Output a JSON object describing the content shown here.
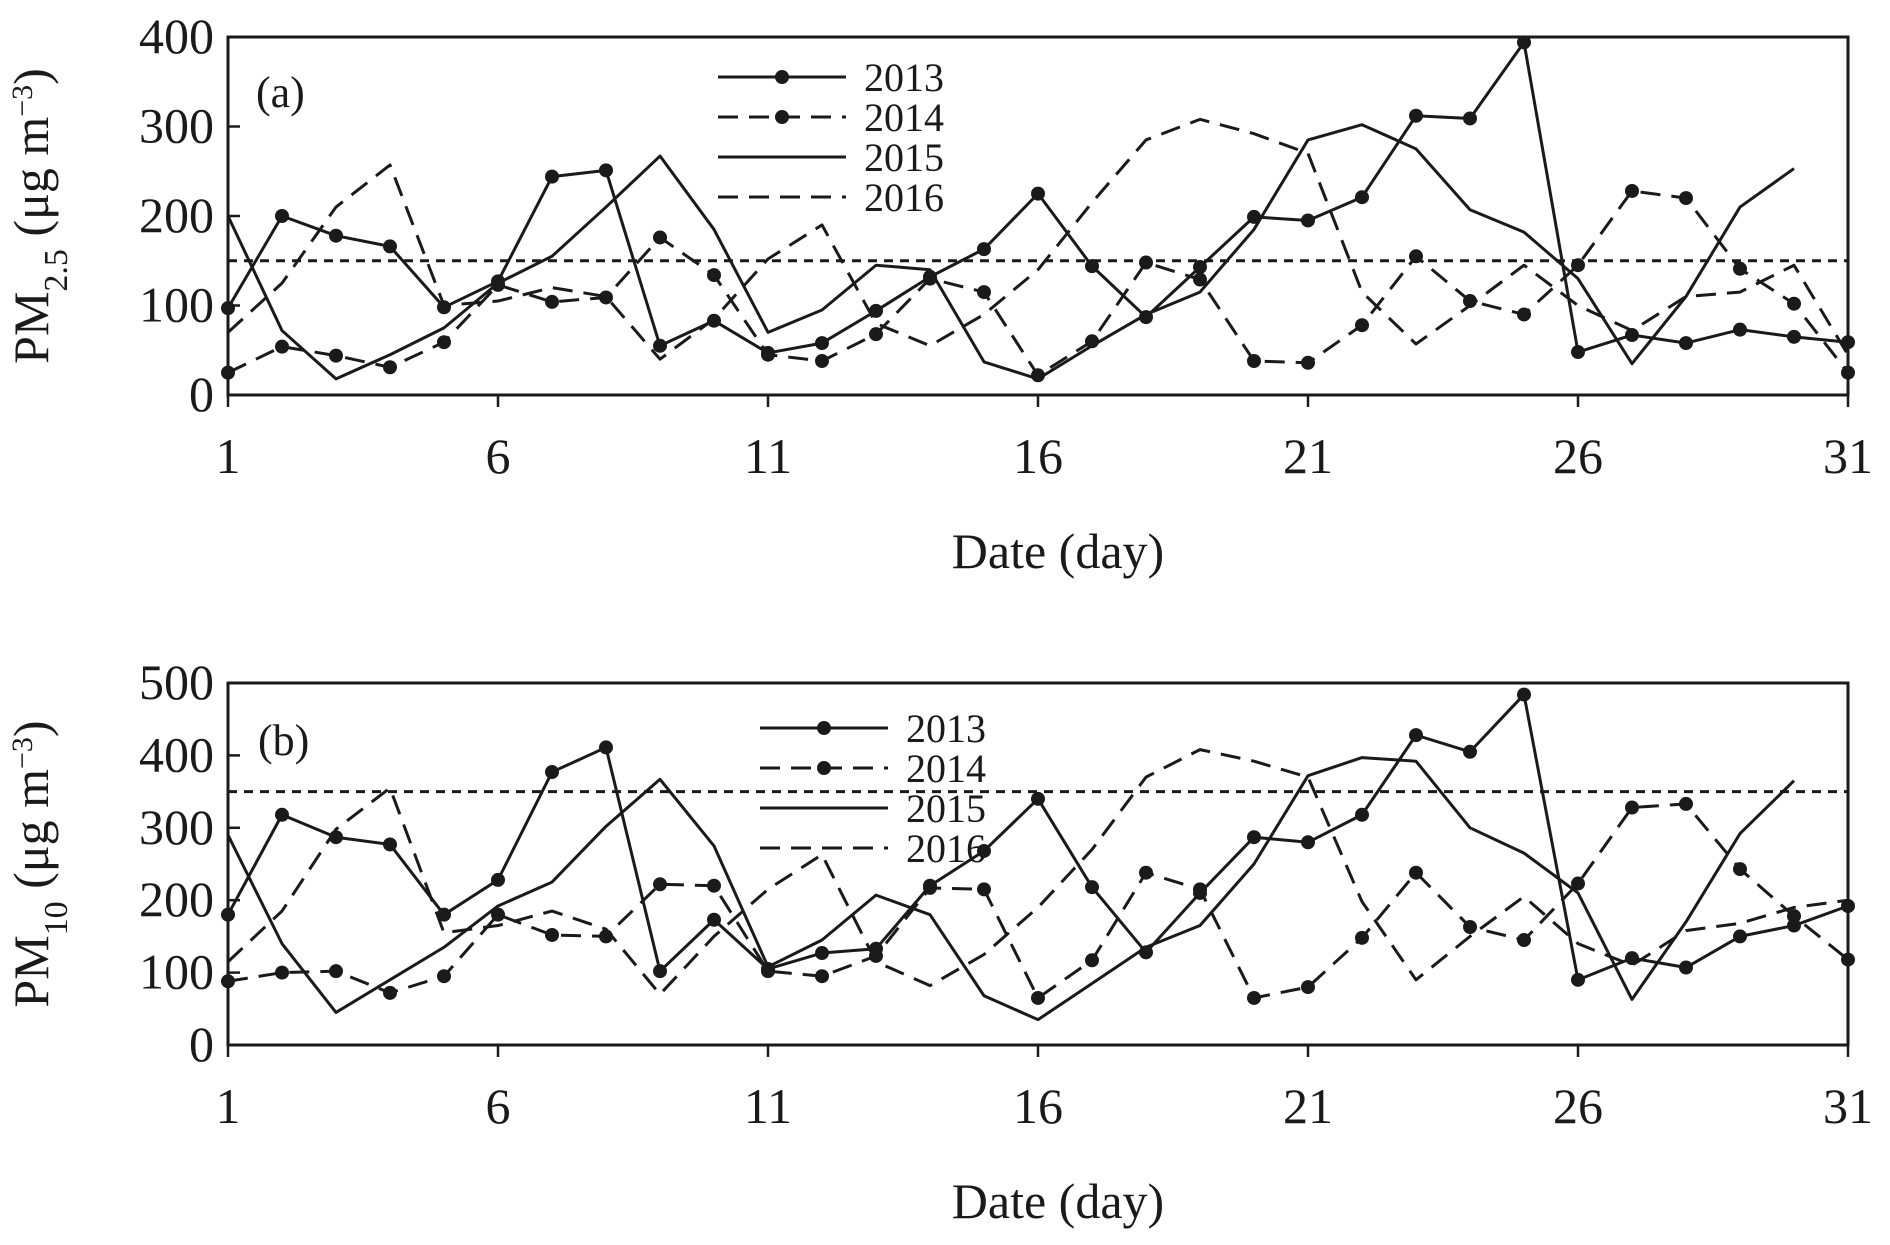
{
  "chart_data": [
    {
      "type": "line",
      "panel_label": "(a)",
      "xlabel": "Date (day)",
      "ylabel": {
        "base": "PM",
        "sub": "2.5",
        "unit_open": " (μg m",
        "unit_sup": "−3",
        "unit_close": ")"
      },
      "xlim": [
        1,
        31
      ],
      "ylim": [
        0,
        400
      ],
      "xticks": [
        1,
        6,
        11,
        16,
        21,
        26,
        31
      ],
      "yticks": [
        0,
        100,
        200,
        300,
        400
      ],
      "reference_line": 150,
      "legend_position": "top-center",
      "series": [
        {
          "name": "2013",
          "style": "solid",
          "marker": true,
          "x": [
            1,
            2,
            3,
            4,
            5,
            6,
            7,
            8,
            9,
            10,
            11,
            12,
            13,
            14,
            15,
            16,
            17,
            18,
            19,
            20,
            21,
            22,
            23,
            24,
            25,
            26,
            27,
            28,
            29,
            30,
            31
          ],
          "values": [
            97,
            200,
            178,
            166,
            98,
            127,
            244,
            251,
            55,
            83,
            47,
            58,
            94,
            132,
            163,
            225,
            144,
            87,
            143,
            199,
            195,
            221,
            312,
            309,
            394,
            48,
            67,
            58,
            73,
            65,
            59
          ]
        },
        {
          "name": "2014",
          "style": "dashed",
          "marker": true,
          "x": [
            1,
            2,
            3,
            4,
            5,
            6,
            7,
            8,
            9,
            10,
            11,
            12,
            13,
            14,
            15,
            16,
            17,
            18,
            19,
            20,
            21,
            22,
            23,
            24,
            25,
            26,
            27,
            28,
            29,
            30,
            31
          ],
          "values": [
            25,
            54,
            44,
            31,
            59,
            123,
            104,
            109,
            176,
            134,
            45,
            38,
            68,
            130,
            115,
            22,
            60,
            148,
            129,
            38,
            36,
            78,
            155,
            105,
            90,
            145,
            228,
            220,
            141,
            102,
            25
          ]
        },
        {
          "name": "2015",
          "style": "solid",
          "marker": false,
          "x": [
            1,
            2,
            3,
            4,
            5,
            6,
            7,
            8,
            9,
            10,
            11,
            12,
            13,
            14,
            15,
            16,
            17,
            18,
            19,
            20,
            21,
            22,
            23,
            24,
            25,
            26,
            27,
            28,
            29,
            30
          ],
          "values": [
            200,
            72,
            18,
            45,
            75,
            125,
            155,
            210,
            267,
            185,
            70,
            95,
            145,
            140,
            37,
            18,
            55,
            90,
            115,
            185,
            285,
            302,
            275,
            207,
            182,
            130,
            35,
            110,
            210,
            253
          ]
        },
        {
          "name": "2016",
          "style": "dashed",
          "marker": false,
          "x": [
            1,
            2,
            3,
            4,
            5,
            6,
            7,
            8,
            9,
            10,
            11,
            12,
            13,
            14,
            15,
            16,
            17,
            18,
            19,
            20,
            21,
            22,
            23,
            24,
            25,
            26,
            27,
            28,
            29,
            30,
            31
          ],
          "values": [
            70,
            125,
            210,
            257,
            100,
            105,
            120,
            110,
            40,
            85,
            152,
            190,
            80,
            55,
            90,
            140,
            215,
            285,
            308,
            292,
            270,
            115,
            57,
            100,
            145,
            100,
            72,
            110,
            115,
            145,
            45
          ]
        }
      ]
    },
    {
      "type": "line",
      "panel_label": "(b)",
      "xlabel": "Date (day)",
      "ylabel": {
        "base": "PM",
        "sub": "10",
        "unit_open": " (μg m",
        "unit_sup": "−3",
        "unit_close": ")"
      },
      "xlim": [
        1,
        31
      ],
      "ylim": [
        0,
        500
      ],
      "xticks": [
        1,
        6,
        11,
        16,
        21,
        26,
        31
      ],
      "yticks": [
        0,
        100,
        200,
        300,
        400,
        500
      ],
      "reference_line": 350,
      "legend_position": "top-center",
      "series": [
        {
          "name": "2013",
          "style": "solid",
          "marker": true,
          "x": [
            1,
            2,
            3,
            4,
            5,
            6,
            7,
            8,
            9,
            10,
            11,
            12,
            13,
            14,
            15,
            16,
            17,
            18,
            19,
            20,
            21,
            22,
            23,
            24,
            25,
            26,
            27,
            28,
            29,
            30,
            31
          ],
          "values": [
            180,
            318,
            287,
            277,
            180,
            228,
            377,
            411,
            102,
            173,
            105,
            127,
            133,
            220,
            268,
            340,
            218,
            128,
            210,
            287,
            280,
            318,
            428,
            405,
            484,
            90,
            120,
            107,
            150,
            165,
            192
          ]
        },
        {
          "name": "2014",
          "style": "dashed",
          "marker": true,
          "x": [
            1,
            2,
            3,
            4,
            5,
            6,
            7,
            8,
            9,
            10,
            11,
            12,
            13,
            14,
            15,
            16,
            17,
            18,
            19,
            20,
            21,
            22,
            23,
            24,
            25,
            26,
            27,
            28,
            29,
            30,
            31
          ],
          "values": [
            88,
            100,
            102,
            72,
            95,
            180,
            152,
            150,
            222,
            220,
            102,
            95,
            123,
            217,
            215,
            65,
            117,
            238,
            215,
            65,
            80,
            148,
            238,
            163,
            145,
            223,
            328,
            333,
            243,
            178,
            118
          ]
        },
        {
          "name": "2015",
          "style": "solid",
          "marker": false,
          "x": [
            1,
            2,
            3,
            4,
            5,
            6,
            7,
            8,
            9,
            10,
            11,
            12,
            13,
            14,
            15,
            16,
            17,
            18,
            19,
            20,
            21,
            22,
            23,
            24,
            25,
            26,
            27,
            28,
            29,
            30
          ],
          "values": [
            290,
            140,
            45,
            90,
            135,
            192,
            225,
            302,
            367,
            275,
            108,
            145,
            207,
            180,
            68,
            35,
            85,
            135,
            165,
            250,
            372,
            397,
            392,
            300,
            265,
            210,
            63,
            170,
            292,
            365
          ]
        },
        {
          "name": "2016",
          "style": "dashed",
          "marker": false,
          "x": [
            1,
            2,
            3,
            4,
            5,
            6,
            7,
            8,
            9,
            10,
            11,
            12,
            13,
            14,
            15,
            16,
            17,
            18,
            19,
            20,
            21,
            22,
            23,
            24,
            25,
            26,
            27,
            28,
            29,
            30,
            31
          ],
          "values": [
            115,
            185,
            298,
            355,
            155,
            165,
            185,
            160,
            70,
            150,
            215,
            263,
            115,
            82,
            125,
            190,
            270,
            370,
            408,
            392,
            370,
            198,
            90,
            150,
            205,
            140,
            110,
            158,
            168,
            190,
            200
          ]
        }
      ]
    }
  ]
}
